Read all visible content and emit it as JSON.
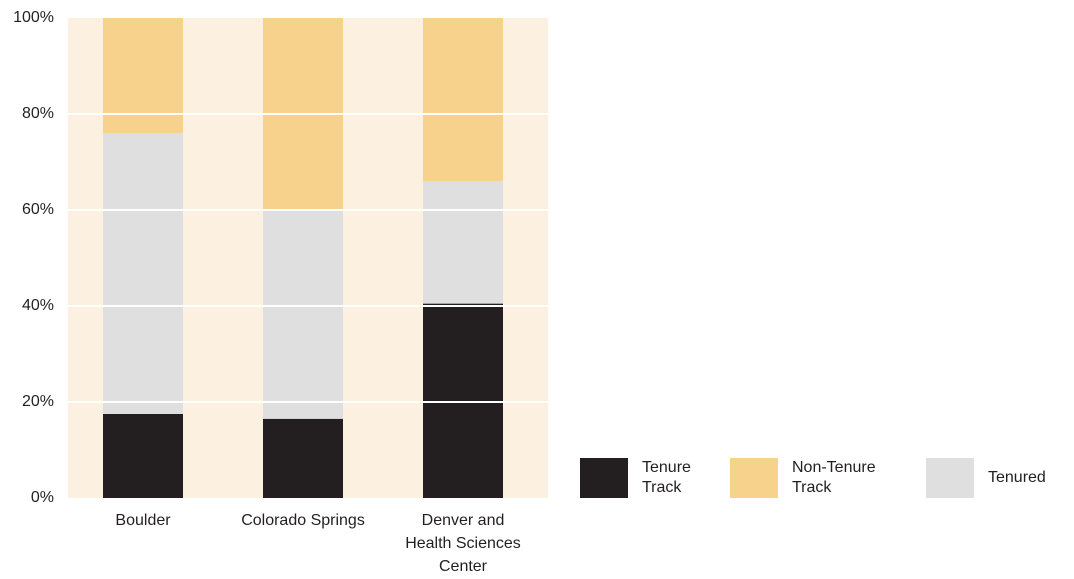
{
  "chart_data": {
    "type": "bar",
    "stacked": true,
    "title": "",
    "xlabel": "",
    "ylabel": "",
    "ylim": [
      0,
      100
    ],
    "yticks": [
      "0%",
      "20%",
      "40%",
      "60%",
      "80%",
      "100%"
    ],
    "categories": [
      [
        "Boulder"
      ],
      [
        "Colorado Springs"
      ],
      [
        "Denver and",
        "Health Sciences",
        "Center"
      ]
    ],
    "series": [
      {
        "name": "Tenure Track",
        "color": "#231f20",
        "values": [
          17.5,
          16.5,
          40.5
        ]
      },
      {
        "name": "Tenured",
        "color": "#dfdfe0",
        "values": [
          58.5,
          43.5,
          25.5
        ]
      },
      {
        "name": "Non-Tenure Track",
        "color": "#f6d28c",
        "values": [
          24,
          40,
          34
        ]
      }
    ],
    "background_color": "#fcf1e1",
    "grid": true,
    "legend_position": "bottom-right"
  },
  "legend": [
    {
      "lines": [
        "Tenure",
        "Track"
      ],
      "color": "#231f20"
    },
    {
      "lines": [
        "Non-Tenure",
        "Track"
      ],
      "color": "#f6d28c"
    },
    {
      "lines": [
        "Tenured"
      ],
      "color": "#dfdfe0"
    }
  ]
}
